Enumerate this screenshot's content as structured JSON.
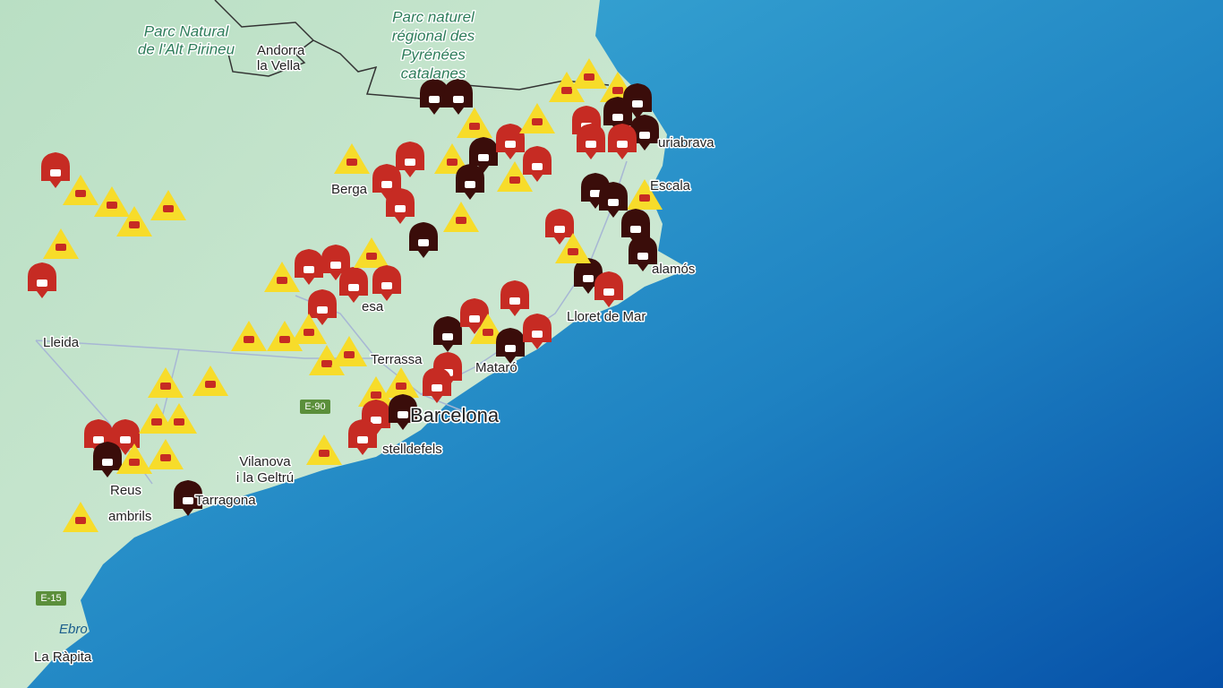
{
  "map": {
    "labels": [
      {
        "text": "Parc Natural",
        "kind": "park"
      },
      {
        "text": "de l'Alt Pirineu",
        "kind": "park"
      },
      {
        "text": "Andorra",
        "kind": "city"
      },
      {
        "text": "la Vella",
        "kind": "city"
      },
      {
        "text": "Parc naturel",
        "kind": "park"
      },
      {
        "text": "régional des",
        "kind": "park"
      },
      {
        "text": "Pyrénées",
        "kind": "park"
      },
      {
        "text": "catalanes",
        "kind": "park"
      },
      {
        "text": "Berga",
        "kind": "city"
      },
      {
        "text": "Lleida",
        "kind": "city"
      },
      {
        "text": "Terrassa",
        "kind": "city"
      },
      {
        "text": "Mataró",
        "kind": "city"
      },
      {
        "text": "Barcelona",
        "kind": "major"
      },
      {
        "text": "Vilanova",
        "kind": "city"
      },
      {
        "text": "i la Geltrú",
        "kind": "city"
      },
      {
        "text": "Reus",
        "kind": "city"
      },
      {
        "text": "Tarragona",
        "kind": "city"
      },
      {
        "text": "ambrils",
        "kind": "city"
      },
      {
        "text": "stelldefels",
        "kind": "city"
      },
      {
        "text": "Lloret de Mar",
        "kind": "city"
      },
      {
        "text": "Escala",
        "kind": "city"
      },
      {
        "text": "uriabrava",
        "kind": "city"
      },
      {
        "text": "alamós",
        "kind": "city"
      },
      {
        "text": "esa",
        "kind": "city"
      },
      {
        "text": "La Ràpita",
        "kind": "city"
      },
      {
        "text": "Ebro",
        "kind": "water"
      },
      {
        "text": "E-90",
        "kind": "road"
      },
      {
        "text": "E-15",
        "kind": "road"
      }
    ]
  }
}
